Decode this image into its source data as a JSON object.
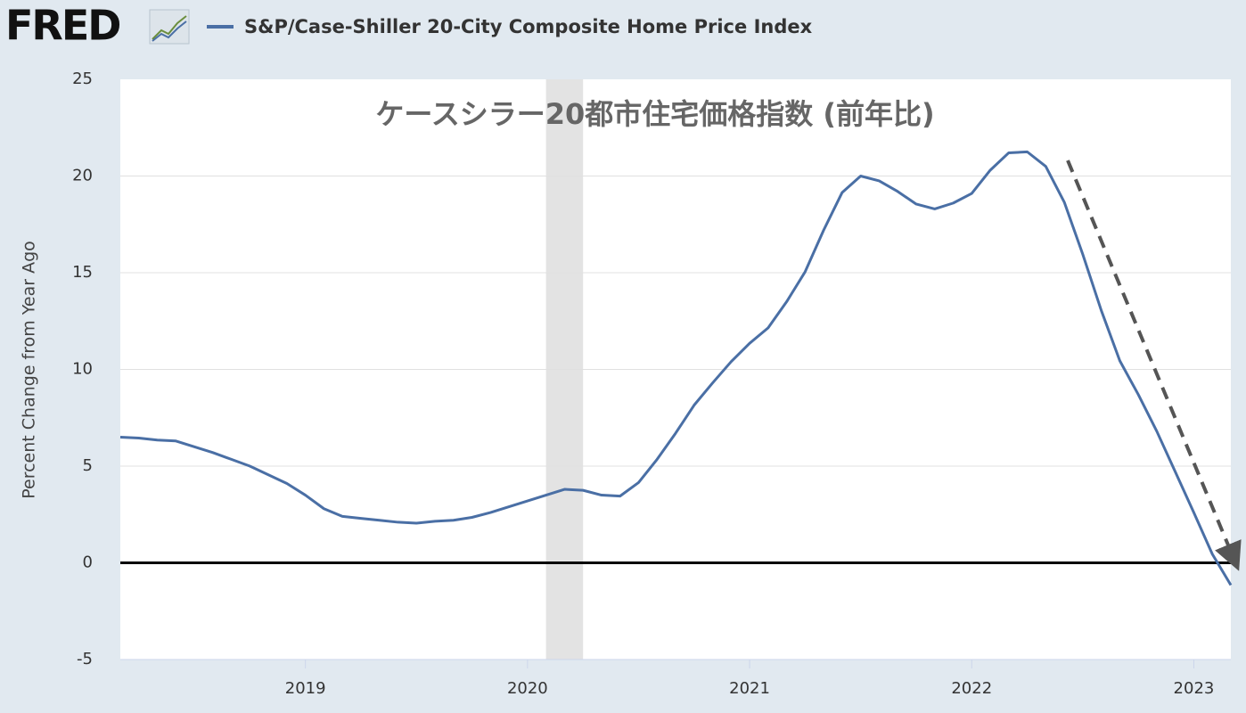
{
  "brand": "FRED",
  "chart_data": {
    "type": "line",
    "annotation": "ケースシラー20都市住宅価格指数 (前年比)",
    "y_label": "Percent Change from Year Ago",
    "x": [
      2018.1667,
      2018.25,
      2018.3333,
      2018.4167,
      2018.5,
      2018.5833,
      2018.6667,
      2018.75,
      2018.8333,
      2018.9167,
      2019,
      2019.0833,
      2019.1667,
      2019.25,
      2019.3333,
      2019.4167,
      2019.5,
      2019.5833,
      2019.6667,
      2019.75,
      2019.8333,
      2019.9167,
      2020,
      2020.0833,
      2020.1667,
      2020.25,
      2020.3333,
      2020.4167,
      2020.5,
      2020.5833,
      2020.6667,
      2020.75,
      2020.8333,
      2020.9167,
      2021,
      2021.0833,
      2021.1667,
      2021.25,
      2021.3333,
      2021.4167,
      2021.5,
      2021.5833,
      2021.6667,
      2021.75,
      2021.8333,
      2021.9167,
      2022,
      2022.0833,
      2022.1667,
      2022.25,
      2022.3333,
      2022.4167,
      2022.5,
      2022.5833,
      2022.6667,
      2022.75,
      2022.8333,
      2022.9167,
      2023,
      2023.0833,
      2023.1667
    ],
    "series": [
      {
        "name": "S&P/Case-Shiller 20-City Composite Home Price Index",
        "color": "#4a6fa5",
        "values": [
          6.5,
          6.45,
          6.35,
          6.3,
          6.0,
          5.7,
          5.35,
          5.0,
          4.55,
          4.1,
          3.5,
          2.8,
          2.4,
          2.3,
          2.2,
          2.1,
          2.05,
          2.15,
          2.2,
          2.35,
          2.6,
          2.9,
          3.2,
          3.5,
          3.8,
          3.75,
          3.5,
          3.45,
          4.15,
          5.35,
          6.7,
          8.15,
          9.3,
          10.4,
          11.35,
          12.15,
          13.5,
          15.05,
          17.2,
          19.15,
          20.0,
          19.75,
          19.2,
          18.55,
          18.3,
          18.6,
          19.1,
          20.3,
          21.2,
          21.25,
          20.5,
          18.65,
          15.95,
          13.05,
          10.45,
          8.7,
          6.8,
          4.7,
          2.6,
          0.45,
          -1.15
        ]
      }
    ],
    "recessions": [
      [
        2020.0833,
        2020.25
      ]
    ],
    "xlim": [
      2018.1667,
      2023.1667
    ],
    "xticks": [
      2019,
      2020,
      2021,
      2022,
      2023
    ],
    "ylim": [
      -5,
      25
    ],
    "yticks": [
      -5,
      0,
      5,
      10,
      15,
      20,
      25
    ],
    "grid": true
  }
}
